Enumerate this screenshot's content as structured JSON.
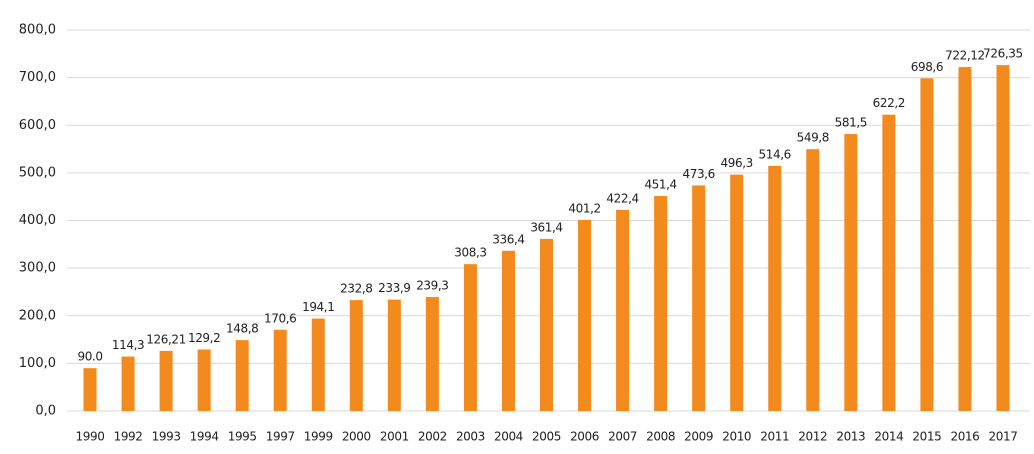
{
  "chart_data": {
    "type": "bar",
    "categories": [
      "1990",
      "1992",
      "1993",
      "1994",
      "1995",
      "1997",
      "1999",
      "2000",
      "2001",
      "2002",
      "2003",
      "2004",
      "2005",
      "2006",
      "2007",
      "2008",
      "2009",
      "2010",
      "2011",
      "2012",
      "2013",
      "2014",
      "2015",
      "2016",
      "2017"
    ],
    "values": [
      90.0,
      114.3,
      126.21,
      129.2,
      148.8,
      170.6,
      194.1,
      232.8,
      233.9,
      239.3,
      308.3,
      336.4,
      361.4,
      401.2,
      422.4,
      451.4,
      473.6,
      496.3,
      514.6,
      549.8,
      581.5,
      622.2,
      698.6,
      722.12,
      726.35
    ],
    "value_labels": [
      "90.0",
      "114,3",
      "126,21",
      "129,2",
      "148,8",
      "170,6",
      "194,1",
      "232,8",
      "233,9",
      "239,3",
      "308,3",
      "336,4",
      "361,4",
      "401,2",
      "422,4",
      "451,4",
      "473,6",
      "496,3",
      "514,6",
      "549,8",
      "581,5",
      "622,2",
      "698,6",
      "722,12",
      "726,35"
    ],
    "color": "#f28a1e",
    "ylim": [
      0,
      800
    ],
    "yticks": [
      {
        "value": 0,
        "label": "0,0"
      },
      {
        "value": 100,
        "label": "100,0"
      },
      {
        "value": 200,
        "label": "200,0"
      },
      {
        "value": 300,
        "label": "300,0"
      },
      {
        "value": 400,
        "label": "400,0"
      },
      {
        "value": 500,
        "label": "500,0"
      },
      {
        "value": 600,
        "label": "600,0"
      },
      {
        "value": 700,
        "label": "700,0"
      },
      {
        "value": 800,
        "label": "800,0"
      }
    ],
    "grid": true
  }
}
